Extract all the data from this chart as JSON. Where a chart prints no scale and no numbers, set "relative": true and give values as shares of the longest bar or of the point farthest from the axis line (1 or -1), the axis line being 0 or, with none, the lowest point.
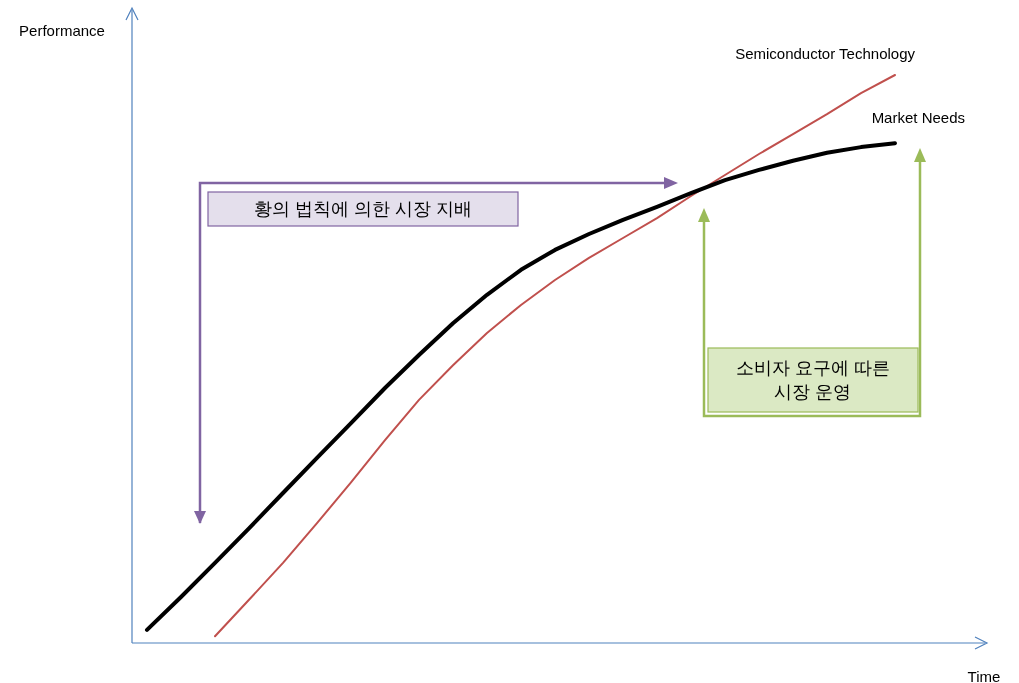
{
  "chart_data": {
    "type": "line",
    "relative": true,
    "xlabel": "Time",
    "ylabel": "Performance",
    "categories": [
      null,
      null,
      null,
      null,
      null,
      null,
      null,
      null,
      null,
      null,
      null,
      null,
      null,
      null,
      null,
      null,
      null,
      null,
      null,
      null,
      null,
      null,
      null
    ],
    "series": [
      {
        "name": "Semiconductor Technology",
        "color": "#c0504d",
        "values": [
          null,
          null,
          0.012,
          0.076,
          0.141,
          0.211,
          0.283,
          0.357,
          0.428,
          0.489,
          0.546,
          0.595,
          0.639,
          0.678,
          0.713,
          0.748,
          0.787,
          0.824,
          0.861,
          0.896,
          0.931,
          0.968,
          1.0
        ]
      },
      {
        "name": "Market Needs",
        "color": "#000000",
        "values": [
          0.023,
          0.081,
          0.141,
          0.202,
          0.264,
          0.326,
          0.387,
          0.449,
          0.507,
          0.563,
          0.613,
          0.657,
          0.692,
          0.72,
          0.745,
          0.768,
          0.792,
          0.815,
          0.833,
          0.849,
          0.863,
          0.873,
          0.88
        ]
      }
    ],
    "annotations": [
      "황의 법칙에 의한 시장 지배",
      "소비자 요구에 따른\n시장 운영"
    ]
  }
}
